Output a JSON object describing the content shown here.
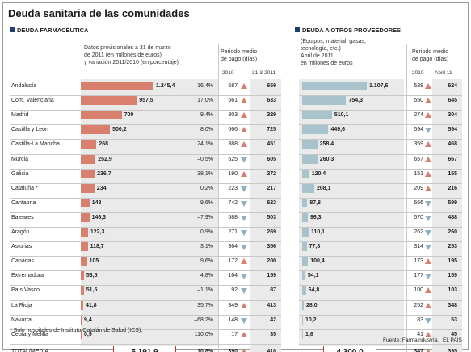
{
  "title": "Deuda sanitaria de las comunidades",
  "footnote": "* Solo hospitales de Instituto Catalán de Salud (ICS).",
  "source": "Fuente: Farmaindustria.",
  "logo": "EL PAÍS",
  "chart_data": [
    {
      "type": "bar",
      "title": "DEUDA FARMACÉUTICA",
      "subtitle": "Datos provisionales a 31 de marzo\nde 2011 (en millones de euros)\ny variación 2011/2010 (en porcentaje)",
      "period_header": "Periodo medio\nde pago (días)",
      "col_a": "2010",
      "col_b": "31-3-2011",
      "total_label": "TOTAL/MEDIA",
      "total_value": "5.191,9",
      "total_change": "10,8%",
      "total_p2010": "390",
      "total_p2011": "410",
      "total_trend": "up",
      "bar_max": 1245.4,
      "rows": [
        {
          "name": "Andalucía",
          "value": 1245.4,
          "label": "1.245,4",
          "change": "16,4%",
          "p2010": "587",
          "trend": "up",
          "p2011": "659"
        },
        {
          "name": "Com. Valenciana",
          "value": 957.5,
          "label": "957,5",
          "change": "17,0%",
          "p2010": "561",
          "trend": "up",
          "p2011": "633"
        },
        {
          "name": "Madrid",
          "value": 700,
          "label": "700",
          "change": "9,4%",
          "p2010": "303",
          "trend": "up",
          "p2011": "329"
        },
        {
          "name": "Castilla y León",
          "value": 500.2,
          "label": "500,2",
          "change": "8,0%",
          "p2010": "666",
          "trend": "up",
          "p2011": "725"
        },
        {
          "name": "Castilla-La Mancha",
          "value": 268,
          "label": "268",
          "change": "24,1%",
          "p2010": "388",
          "trend": "up",
          "p2011": "451"
        },
        {
          "name": "Murcia",
          "value": 252.9,
          "label": "252,9",
          "change": "–0,5%",
          "p2010": "625",
          "trend": "down",
          "p2011": "605"
        },
        {
          "name": "Galicia",
          "value": 236.7,
          "label": "236,7",
          "change": "38,1%",
          "p2010": "190",
          "trend": "up",
          "p2011": "272"
        },
        {
          "name": "Cataluña *",
          "value": 234,
          "label": "234",
          "change": "0,2%",
          "p2010": "223",
          "trend": "down",
          "p2011": "217"
        },
        {
          "name": "Cantabria",
          "value": 148,
          "label": "148",
          "change": "–9,6%",
          "p2010": "742",
          "trend": "down",
          "p2011": "623"
        },
        {
          "name": "Baleares",
          "value": 146.3,
          "label": "146,3",
          "change": "–7,9%",
          "p2010": "588",
          "trend": "down",
          "p2011": "503"
        },
        {
          "name": "Aragón",
          "value": 122.3,
          "label": "122,3",
          "change": "0,9%",
          "p2010": "271",
          "trend": "down",
          "p2011": "269"
        },
        {
          "name": "Asturias",
          "value": 118.7,
          "label": "118,7",
          "change": "3,1%",
          "p2010": "364",
          "trend": "down",
          "p2011": "356"
        },
        {
          "name": "Canarias",
          "value": 105,
          "label": "105",
          "change": "9,6%",
          "p2010": "172",
          "trend": "up",
          "p2011": "200"
        },
        {
          "name": "Extremadura",
          "value": 53.5,
          "label": "53,5",
          "change": "4,8%",
          "p2010": "164",
          "trend": "down",
          "p2011": "159"
        },
        {
          "name": "País Vasco",
          "value": 51.5,
          "label": "51,5",
          "change": "–1,1%",
          "p2010": "92",
          "trend": "down",
          "p2011": "87"
        },
        {
          "name": "La Rioja",
          "value": 41.8,
          "label": "41,8",
          "change": "35,7%",
          "p2010": "349",
          "trend": "up",
          "p2011": "413"
        },
        {
          "name": "Navarra",
          "value": 9.4,
          "label": "9,4",
          "change": "–68,2%",
          "p2010": "148",
          "trend": "down",
          "p2011": "42"
        },
        {
          "name": "Ceuta y Melilla",
          "value": 0.9,
          "label": "0,9",
          "change": "110,0%",
          "p2010": "17",
          "trend": "up",
          "p2011": "35"
        }
      ]
    },
    {
      "type": "bar",
      "title": "DEUDA A OTROS PROVEEDORES",
      "subtitle": "(Equipos, material, gasas,\ntecnología, etc.)\nAbril de 2011,\nen millones de euros",
      "period_header": "Periodo medio\nde pago (días)",
      "col_a": "2010",
      "col_b": "Abril 11",
      "total_value": "4.300,0",
      "total_p2010": "347",
      "total_p2011": "395",
      "total_trend": "up",
      "bar_max": 1107.6,
      "rows": [
        {
          "value": 1107.6,
          "label": "1.107,6",
          "p2010": "538",
          "trend": "up",
          "p2011": "624"
        },
        {
          "value": 754.3,
          "label": "754,3",
          "p2010": "550",
          "trend": "up",
          "p2011": "645"
        },
        {
          "value": 510.1,
          "label": "510,1",
          "p2010": "274",
          "trend": "up",
          "p2011": "304"
        },
        {
          "value": 449.6,
          "label": "449,6",
          "p2010": "594",
          "trend": "down",
          "p2011": "594"
        },
        {
          "value": 258.4,
          "label": "258,4",
          "p2010": "359",
          "trend": "up",
          "p2011": "468"
        },
        {
          "value": 260.3,
          "label": "260,3",
          "p2010": "657",
          "trend": "up",
          "p2011": "667"
        },
        {
          "value": 120.4,
          "label": "120,4",
          "p2010": "151",
          "trend": "up",
          "p2011": "155"
        },
        {
          "value": 208.1,
          "label": "208,1",
          "p2010": "209",
          "trend": "up",
          "p2011": "216"
        },
        {
          "value": 87.8,
          "label": "87,8",
          "p2010": "666",
          "trend": "down",
          "p2011": "599"
        },
        {
          "value": 96.3,
          "label": "96,3",
          "p2010": "570",
          "trend": "down",
          "p2011": "488"
        },
        {
          "value": 110.1,
          "label": "110,1",
          "p2010": "262",
          "trend": "down",
          "p2011": "260"
        },
        {
          "value": 77.8,
          "label": "77,8",
          "p2010": "314",
          "trend": "down",
          "p2011": "253"
        },
        {
          "value": 100.4,
          "label": "100,4",
          "p2010": "173",
          "trend": "up",
          "p2011": "195"
        },
        {
          "value": 54.1,
          "label": "54,1",
          "p2010": "177",
          "trend": "down",
          "p2011": "159"
        },
        {
          "value": 64.8,
          "label": "64,8",
          "p2010": "100",
          "trend": "up",
          "p2011": "103"
        },
        {
          "value": 28.0,
          "label": "28,0",
          "p2010": "252",
          "trend": "up",
          "p2011": "348"
        },
        {
          "value": 10.2,
          "label": "10,2",
          "p2010": "83",
          "trend": "down",
          "p2011": "53"
        },
        {
          "value": 1.8,
          "label": "1,8",
          "p2010": "41",
          "trend": "up",
          "p2011": "45"
        }
      ]
    }
  ]
}
